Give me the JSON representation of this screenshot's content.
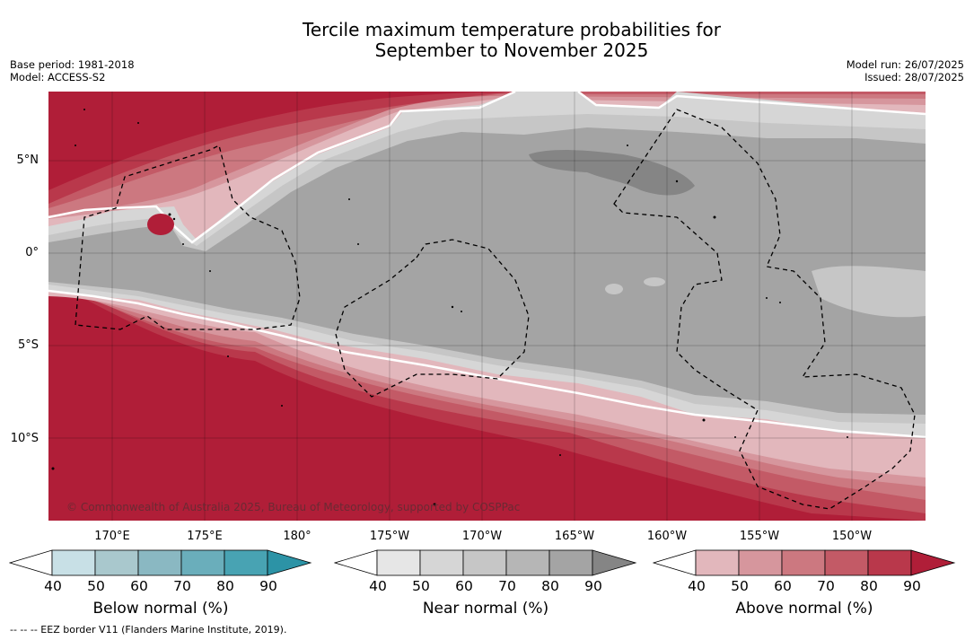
{
  "title_line1": "Tercile maximum temperature probabilities for",
  "title_line2": "September to November 2025",
  "base_period": "Base period: 1981-2018",
  "model": "Model: ACCESS-S2",
  "model_run": "Model run: 26/07/2025",
  "issued": "Issued: 28/07/2025",
  "lat_labels": [
    "5°N",
    "0°",
    "5°S",
    "10°S"
  ],
  "lon_labels": [
    "170°E",
    "175°E",
    "180°",
    "175°W",
    "170°W",
    "165°W",
    "160°W",
    "155°W",
    "150°W"
  ],
  "copyright": "© Commonwealth of Australia 2025, Bureau of Meteorology, supported by COSPPac",
  "footnote": "--  --  -- EEZ border V11 (Flanders Marine Institute, 2019).",
  "colorbars": [
    {
      "title": "Below normal (%)",
      "ticks": [
        "40",
        "50",
        "60",
        "70",
        "80",
        "90"
      ],
      "colors": [
        "#ffffff",
        "#c8e0e6",
        "#a9c8cd",
        "#8ab8c2",
        "#6aaebb",
        "#48a3b3",
        "#2c93a6"
      ]
    },
    {
      "title": "Near normal (%)",
      "ticks": [
        "40",
        "50",
        "60",
        "70",
        "80",
        "90"
      ],
      "colors": [
        "#ffffff",
        "#e6e6e6",
        "#d6d6d6",
        "#c6c6c6",
        "#b6b6b6",
        "#a4a4a4",
        "#858585"
      ]
    },
    {
      "title": "Above normal (%)",
      "ticks": [
        "40",
        "50",
        "60",
        "70",
        "80",
        "90"
      ],
      "colors": [
        "#ffffff",
        "#e2b7bc",
        "#d6969d",
        "#cc7880",
        "#c35a66",
        "#b9384b",
        "#b01e38"
      ]
    }
  ]
}
